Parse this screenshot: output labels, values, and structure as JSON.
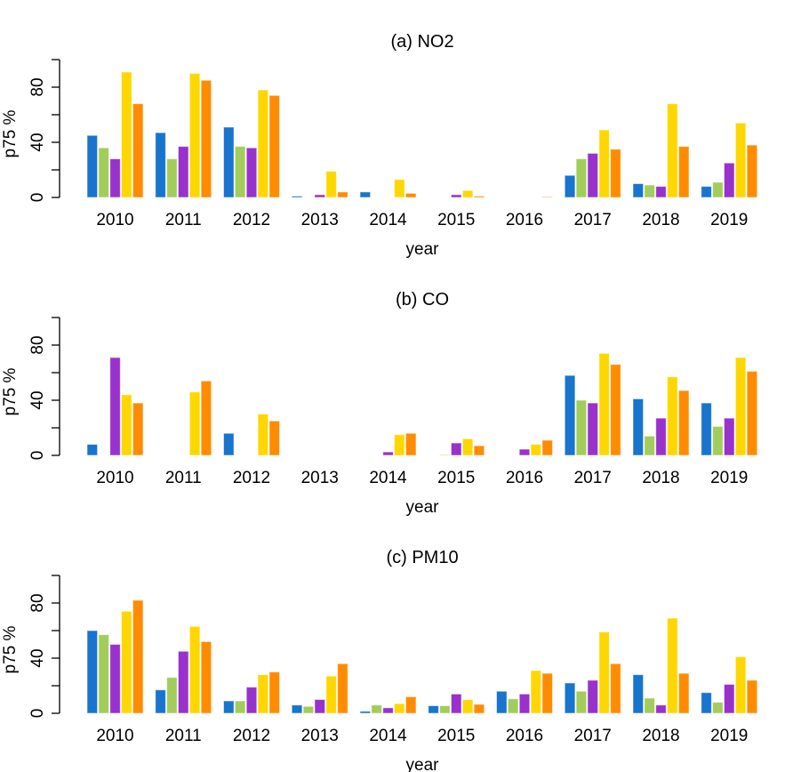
{
  "chart_data": [
    {
      "type": "bar",
      "title": "(a) NO2",
      "xlabel": "year",
      "ylabel": "p75 %",
      "ylim": [
        0,
        100
      ],
      "yticks": [
        0,
        20,
        40,
        60,
        80,
        100
      ],
      "ytick_labels": [
        "0",
        "",
        "40",
        "",
        "80",
        ""
      ],
      "categories": [
        "2010",
        "2011",
        "2012",
        "2013",
        "2014",
        "2015",
        "2016",
        "2017",
        "2018",
        "2019"
      ],
      "series": [
        {
          "name": "series-1",
          "color": "#1874CD",
          "values": [
            45,
            47,
            51,
            1,
            4,
            0,
            0,
            16,
            10,
            8
          ]
        },
        {
          "name": "series-2",
          "color": "#A2CD5A",
          "values": [
            36,
            28,
            37,
            0,
            0,
            0,
            0,
            28,
            9,
            11
          ]
        },
        {
          "name": "series-3",
          "color": "#9932CC",
          "values": [
            28,
            37,
            36,
            2,
            0,
            2,
            0,
            32,
            8,
            25
          ]
        },
        {
          "name": "series-4",
          "color": "#FFD700",
          "values": [
            91,
            90,
            78,
            19,
            13,
            5,
            0,
            49,
            68,
            54
          ]
        },
        {
          "name": "series-5",
          "color": "#FF8C00",
          "values": [
            68,
            85,
            74,
            4,
            3,
            1,
            0.5,
            35,
            37,
            38
          ]
        }
      ],
      "grid": false,
      "legend": "none"
    },
    {
      "type": "bar",
      "title": "(b) CO",
      "xlabel": "year",
      "ylabel": "p75 %",
      "ylim": [
        0,
        100
      ],
      "yticks": [
        0,
        20,
        40,
        60,
        80,
        100
      ],
      "ytick_labels": [
        "0",
        "",
        "40",
        "",
        "80",
        ""
      ],
      "categories": [
        "2010",
        "2011",
        "2012",
        "2013",
        "2014",
        "2015",
        "2016",
        "2017",
        "2018",
        "2019"
      ],
      "series": [
        {
          "name": "series-1",
          "color": "#1874CD",
          "values": [
            8,
            0,
            16,
            0,
            0,
            0,
            0,
            58,
            41,
            38
          ]
        },
        {
          "name": "series-2",
          "color": "#A2CD5A",
          "values": [
            0,
            0,
            0,
            0,
            0,
            0.5,
            0,
            40,
            14,
            21
          ]
        },
        {
          "name": "series-3",
          "color": "#9932CC",
          "values": [
            71,
            0,
            0,
            0,
            2.5,
            9,
            4.5,
            38,
            27,
            27
          ]
        },
        {
          "name": "series-4",
          "color": "#FFD700",
          "values": [
            44,
            46,
            30,
            0,
            15,
            12,
            8,
            74,
            57,
            71
          ]
        },
        {
          "name": "series-5",
          "color": "#FF8C00",
          "values": [
            38,
            54,
            25,
            0,
            16,
            7,
            11,
            66,
            47,
            61
          ]
        }
      ],
      "grid": false,
      "legend": "none"
    },
    {
      "type": "bar",
      "title": "(c) PM10",
      "xlabel": "year",
      "ylabel": "p75 %",
      "ylim": [
        0,
        100
      ],
      "yticks": [
        0,
        20,
        40,
        60,
        80,
        100
      ],
      "ytick_labels": [
        "0",
        "",
        "40",
        "",
        "80",
        ""
      ],
      "categories": [
        "2010",
        "2011",
        "2012",
        "2013",
        "2014",
        "2015",
        "2016",
        "2017",
        "2018",
        "2019"
      ],
      "series": [
        {
          "name": "series-1",
          "color": "#1874CD",
          "values": [
            60,
            17,
            9,
            6,
            1.5,
            5.5,
            16,
            22,
            28,
            15
          ]
        },
        {
          "name": "series-2",
          "color": "#A2CD5A",
          "values": [
            57,
            26,
            9,
            5,
            6,
            5.5,
            10.5,
            16,
            11,
            8
          ]
        },
        {
          "name": "series-3",
          "color": "#9932CC",
          "values": [
            50,
            45,
            19,
            10,
            4,
            14,
            14,
            24,
            6,
            21
          ]
        },
        {
          "name": "series-4",
          "color": "#FFD700",
          "values": [
            74,
            63,
            28,
            27,
            7,
            10,
            31,
            59,
            69,
            41
          ]
        },
        {
          "name": "series-5",
          "color": "#FF8C00",
          "values": [
            82,
            52,
            30,
            36,
            12,
            6.5,
            29,
            36,
            29,
            24
          ]
        }
      ],
      "grid": false,
      "legend": "none"
    }
  ]
}
